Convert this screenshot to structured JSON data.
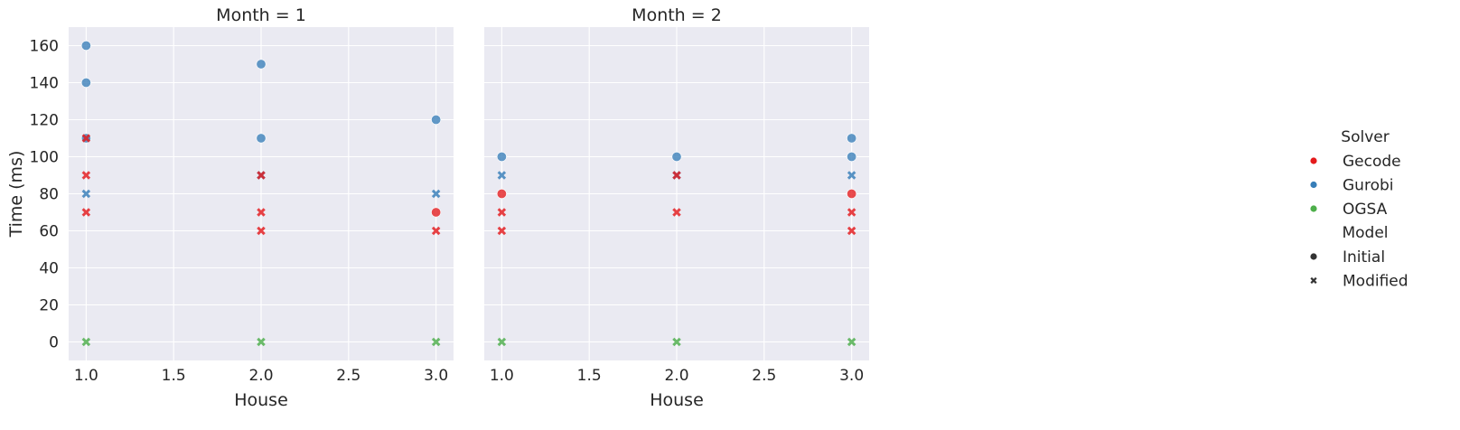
{
  "chart_data": {
    "type": "scatter",
    "facet_variable": "Month",
    "xlabel": "House",
    "ylabel": "Time (ms)",
    "xlim": [
      0.9,
      3.1
    ],
    "ylim": [
      -10,
      170
    ],
    "xticks": [
      1.0,
      1.5,
      2.0,
      2.5,
      3.0
    ],
    "xtick_labels": [
      "1.0",
      "1.5",
      "2.0",
      "2.5",
      "3.0"
    ],
    "yticks": [
      0,
      20,
      40,
      60,
      80,
      100,
      120,
      140,
      160
    ],
    "ytick_labels": [
      "0",
      "20",
      "40",
      "60",
      "80",
      "100",
      "120",
      "140",
      "160"
    ],
    "grid": true,
    "background": "#eaeaf2",
    "panels": [
      {
        "title": "Month = 1",
        "points": [
          {
            "x": 1,
            "y": 160,
            "solver": "Gurobi",
            "model": "Initial"
          },
          {
            "x": 1,
            "y": 140,
            "solver": "Gurobi",
            "model": "Initial"
          },
          {
            "x": 1,
            "y": 110,
            "solver": "Gurobi",
            "model": "Initial"
          },
          {
            "x": 1,
            "y": 110,
            "solver": "Gecode",
            "model": "Modified"
          },
          {
            "x": 1,
            "y": 90,
            "solver": "Gecode",
            "model": "Modified"
          },
          {
            "x": 1,
            "y": 80,
            "solver": "Gurobi",
            "model": "Modified"
          },
          {
            "x": 1,
            "y": 70,
            "solver": "Gecode",
            "model": "Modified"
          },
          {
            "x": 1,
            "y": 0,
            "solver": "OGSA",
            "model": "Modified"
          },
          {
            "x": 2,
            "y": 150,
            "solver": "Gurobi",
            "model": "Initial"
          },
          {
            "x": 2,
            "y": 110,
            "solver": "Gurobi",
            "model": "Initial"
          },
          {
            "x": 2,
            "y": 90,
            "solver": "Gurobi",
            "model": "Modified"
          },
          {
            "x": 2,
            "y": 90,
            "solver": "Gecode",
            "model": "Modified"
          },
          {
            "x": 2,
            "y": 70,
            "solver": "Gecode",
            "model": "Modified"
          },
          {
            "x": 2,
            "y": 60,
            "solver": "Gecode",
            "model": "Modified"
          },
          {
            "x": 2,
            "y": 0,
            "solver": "OGSA",
            "model": "Modified"
          },
          {
            "x": 3,
            "y": 120,
            "solver": "Gurobi",
            "model": "Initial"
          },
          {
            "x": 3,
            "y": 80,
            "solver": "Gurobi",
            "model": "Modified"
          },
          {
            "x": 3,
            "y": 70,
            "solver": "Gecode",
            "model": "Initial"
          },
          {
            "x": 3,
            "y": 60,
            "solver": "Gecode",
            "model": "Modified"
          },
          {
            "x": 3,
            "y": 0,
            "solver": "OGSA",
            "model": "Modified"
          }
        ]
      },
      {
        "title": "Month = 2",
        "points": [
          {
            "x": 1,
            "y": 100,
            "solver": "Gurobi",
            "model": "Initial"
          },
          {
            "x": 1,
            "y": 90,
            "solver": "Gurobi",
            "model": "Modified"
          },
          {
            "x": 1,
            "y": 80,
            "solver": "Gecode",
            "model": "Initial"
          },
          {
            "x": 1,
            "y": 70,
            "solver": "Gecode",
            "model": "Modified"
          },
          {
            "x": 1,
            "y": 60,
            "solver": "Gecode",
            "model": "Modified"
          },
          {
            "x": 1,
            "y": 0,
            "solver": "OGSA",
            "model": "Modified"
          },
          {
            "x": 2,
            "y": 100,
            "solver": "Gurobi",
            "model": "Initial"
          },
          {
            "x": 2,
            "y": 90,
            "solver": "Gurobi",
            "model": "Modified"
          },
          {
            "x": 2,
            "y": 90,
            "solver": "Gecode",
            "model": "Modified"
          },
          {
            "x": 2,
            "y": 70,
            "solver": "Gecode",
            "model": "Modified"
          },
          {
            "x": 2,
            "y": 0,
            "solver": "OGSA",
            "model": "Modified"
          },
          {
            "x": 3,
            "y": 110,
            "solver": "Gurobi",
            "model": "Initial"
          },
          {
            "x": 3,
            "y": 100,
            "solver": "Gurobi",
            "model": "Initial"
          },
          {
            "x": 3,
            "y": 90,
            "solver": "Gurobi",
            "model": "Modified"
          },
          {
            "x": 3,
            "y": 80,
            "solver": "Gecode",
            "model": "Initial"
          },
          {
            "x": 3,
            "y": 70,
            "solver": "Gecode",
            "model": "Modified"
          },
          {
            "x": 3,
            "y": 60,
            "solver": "Gecode",
            "model": "Modified"
          },
          {
            "x": 3,
            "y": 0,
            "solver": "OGSA",
            "model": "Modified"
          }
        ]
      }
    ],
    "legend": {
      "placement": "right",
      "hue_title": "Solver",
      "hue": [
        {
          "name": "Gecode",
          "color": "#e41a1c"
        },
        {
          "name": "Gurobi",
          "color": "#377eb8"
        },
        {
          "name": "OGSA",
          "color": "#4daf4a"
        }
      ],
      "style_title": "Model",
      "styles": [
        {
          "name": "Initial",
          "marker": "circle"
        },
        {
          "name": "Modified",
          "marker": "x"
        }
      ]
    }
  }
}
